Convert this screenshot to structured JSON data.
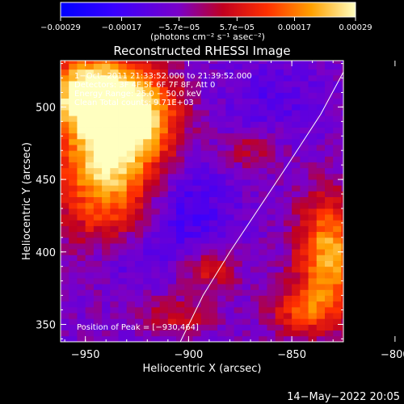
{
  "chart_data": {
    "type": "heatmap",
    "title": "Reconstructed RHESSI Image",
    "xlabel": "Heliocentric X (arcsec)",
    "ylabel": "Heliocentric Y (arcsec)",
    "xlim": [
      -962,
      -825
    ],
    "ylim": [
      338,
      532
    ],
    "x_ticks": [
      -950,
      -900,
      -850,
      -800
    ],
    "y_ticks": [
      350,
      400,
      450,
      500
    ],
    "x_tick_labels": [
      "−950",
      "−900",
      "−850",
      "−800"
    ],
    "y_tick_labels": [
      "350",
      "400",
      "450",
      "500"
    ],
    "colorbar": {
      "range": [
        -0.00029,
        0.00029
      ],
      "tick_values": [
        -0.00029,
        -0.00017,
        -5.7e-05,
        5.7e-05,
        0.00017,
        0.00029
      ],
      "tick_labels": [
        "−0.00029",
        "−0.00017",
        "−5.7e−05",
        "5.7e−05",
        "0.00017",
        "0.00029"
      ],
      "unit_label": "(photons cm⁻² s⁻¹ asec⁻²)"
    },
    "annotations": [
      "1−Oct−2011 21:33:52.000 to 21:39:52.000",
      "Detectors: 3F 4F 5F 6F 7F 8F, Att 0",
      "Energy Range: 25.0 − 50.0 keV",
      "Clean     Total counts: 9.71E+03"
    ],
    "peak_label": "Position of Peak = [−930,464]",
    "peak": [
      -930,
      464
    ],
    "limb_line": [
      [
        -904,
        338
      ],
      [
        -893,
        370
      ],
      [
        -880,
        400
      ],
      [
        -866,
        430
      ],
      [
        -852,
        460
      ],
      [
        -836,
        495
      ],
      [
        -822,
        532
      ]
    ],
    "intensity_blobs": [
      {
        "x": -938,
        "y": 470,
        "sx": 18,
        "sy": 42,
        "amp": 1.0
      },
      {
        "x": -950,
        "y": 510,
        "sx": 14,
        "sy": 16,
        "amp": 0.75
      },
      {
        "x": -925,
        "y": 495,
        "sx": 14,
        "sy": 18,
        "amp": 0.6
      },
      {
        "x": -832,
        "y": 398,
        "sx": 11,
        "sy": 28,
        "amp": 0.8
      },
      {
        "x": -845,
        "y": 360,
        "sx": 12,
        "sy": 12,
        "amp": 0.45
      },
      {
        "x": -890,
        "y": 388,
        "sx": 10,
        "sy": 10,
        "amp": 0.35
      },
      {
        "x": -905,
        "y": 355,
        "sx": 12,
        "sy": 10,
        "amp": 0.3
      },
      {
        "x": -870,
        "y": 470,
        "sx": 9,
        "sy": 9,
        "amp": 0.25
      }
    ],
    "negative_blobs": [
      {
        "x": -905,
        "y": 430,
        "sx": 16,
        "sy": 22,
        "amp": 0.6
      },
      {
        "x": -930,
        "y": 395,
        "sx": 14,
        "sy": 14,
        "amp": 0.45
      },
      {
        "x": -860,
        "y": 505,
        "sx": 16,
        "sy": 16,
        "amp": 0.3
      }
    ]
  },
  "footer": {
    "timestamp": "14−May−2022 20:05"
  }
}
